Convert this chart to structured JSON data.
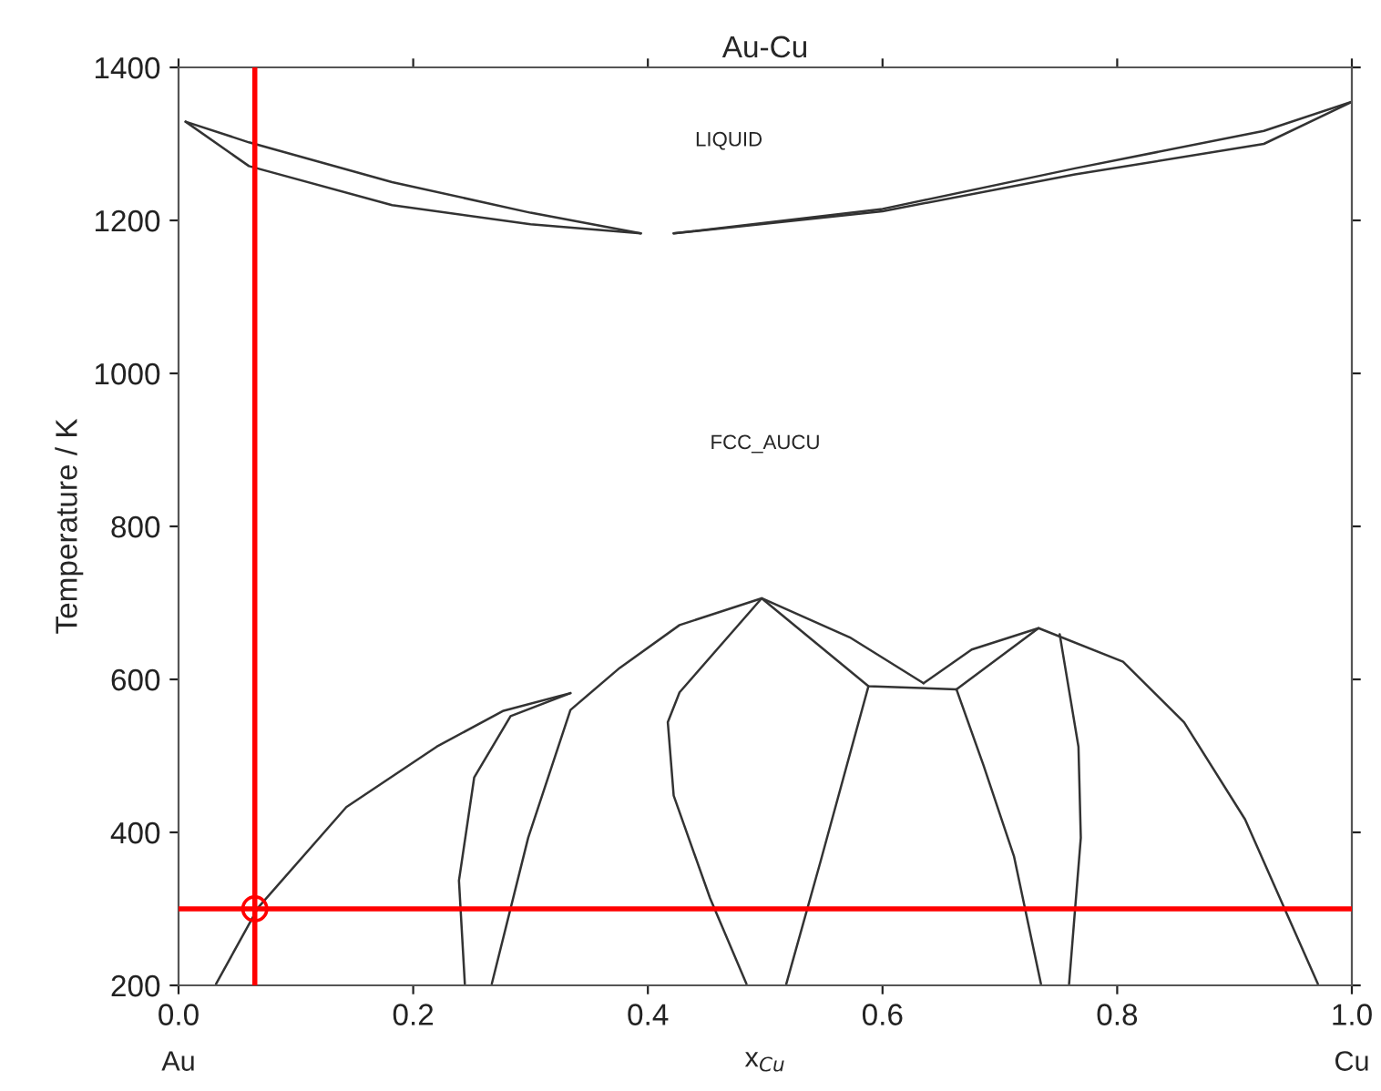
{
  "chart_data": {
    "type": "line",
    "title": "Au-Cu",
    "xlabel": "x$_{Cu}$",
    "ylabel": "Temperature / K",
    "xlim": [
      0,
      1
    ],
    "ylim": [
      200,
      1400
    ],
    "xticks": [
      {
        "value": 0,
        "label": "0.0"
      },
      0.2,
      0.4,
      0.6,
      0.8,
      {
        "value": 1,
        "label": "1.0"
      }
    ],
    "yticks": [
      200,
      400,
      600,
      800,
      1000,
      1200,
      1400
    ],
    "grid": false,
    "legend": false,
    "marker": "none",
    "line_style": "solid",
    "series": [
      {
        "color": "#333333",
        "x": [
          0.006,
          0.06,
          0.182,
          0.3,
          0.394
        ],
        "values": [
          1329,
          1302,
          1250,
          1210,
          1183
        ]
      },
      {
        "color": "#333333",
        "x": [
          0.006,
          0.06,
          0.182,
          0.3,
          0.394
        ],
        "values": [
          1329,
          1271,
          1220,
          1195,
          1183
        ]
      },
      {
        "color": "#333333",
        "x": [
          0.422,
          0.6,
          0.764,
          0.925,
          1.0
        ],
        "values": [
          1183,
          1215,
          1268,
          1317,
          1355
        ]
      },
      {
        "color": "#333333",
        "x": [
          0.422,
          0.6,
          0.764,
          0.925,
          1.0
        ],
        "values": [
          1183,
          1212,
          1260,
          1300,
          1355
        ]
      },
      {
        "color": "#333333",
        "x": [
          0.032,
          0.068,
          0.143,
          0.22,
          0.277,
          0.334
        ],
        "values": [
          202,
          302,
          433,
          512,
          559,
          582
        ]
      },
      {
        "color": "#333333",
        "x": [
          0.244,
          0.239,
          0.252,
          0.283,
          0.334
        ],
        "values": [
          202,
          337,
          472,
          552,
          582
        ]
      },
      {
        "color": "#333333",
        "x": [
          0.267,
          0.298,
          0.334,
          0.376,
          0.427,
          0.497,
          0.572,
          0.635
        ],
        "values": [
          202,
          393,
          560,
          615,
          671,
          706,
          655,
          595
        ]
      },
      {
        "color": "#333333",
        "x": [
          0.484,
          0.453,
          0.422,
          0.417,
          0.427,
          0.497,
          0.588,
          0.663
        ],
        "values": [
          202,
          314,
          448,
          544,
          583,
          706,
          591,
          587
        ]
      },
      {
        "color": "#333333",
        "x": [
          0.518,
          0.547,
          0.588
        ],
        "values": [
          202,
          361,
          591
        ]
      },
      {
        "color": "#333333",
        "x": [
          0.635,
          0.676,
          0.733,
          0.805,
          0.857,
          0.909,
          0.971
        ],
        "values": [
          595,
          639,
          667,
          623,
          544,
          417,
          202
        ]
      },
      {
        "color": "#333333",
        "x": [
          0.663,
          0.733
        ],
        "values": [
          587,
          667
        ]
      },
      {
        "color": "#333333",
        "x": [
          0.663,
          0.686,
          0.712,
          0.735
        ],
        "values": [
          587,
          488,
          369,
          202
        ]
      },
      {
        "color": "#333333",
        "x": [
          0.751,
          0.767,
          0.769,
          0.759
        ],
        "values": [
          659,
          512,
          393,
          202
        ]
      },
      {
        "type": "scatter",
        "marker": "circle",
        "color": "#ff0000",
        "x": [
          0.065
        ],
        "values": [
          300
        ]
      }
    ],
    "ref_lines": [
      {
        "axis": "x",
        "value": 0.065,
        "color": "#ff0000"
      },
      {
        "axis": "y",
        "value": 300,
        "color": "#ff0000"
      }
    ],
    "annotations": [
      "LIQUID",
      "FCC_AUCU",
      "Au",
      "Cu"
    ]
  }
}
